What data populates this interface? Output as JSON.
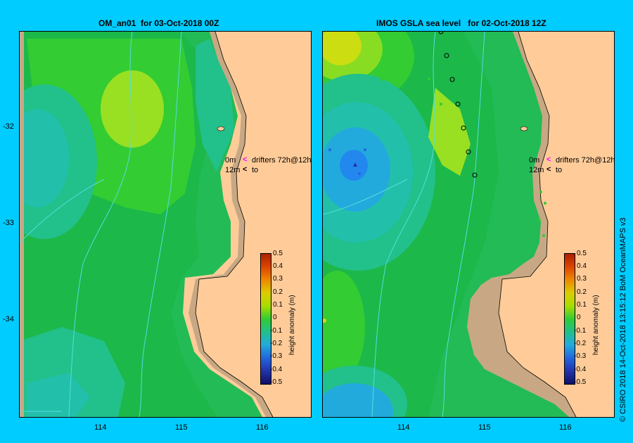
{
  "left_panel": {
    "title": "OM_an01  for 03-Oct-2018 00Z",
    "drifters_line1": "0m",
    "drifters_text": "drifters 72h@12h",
    "drifters_line2": "12m",
    "drifters_to": "to"
  },
  "right_panel": {
    "title": "IMOS GSLA sea level   for 02-Oct-2018 12Z",
    "drifters_line1": "0m",
    "drifters_text": "drifters 72h@12h",
    "drifters_line2": "12m",
    "drifters_to": "to"
  },
  "x_ticks": [
    "114",
    "115",
    "116"
  ],
  "y_ticks": [
    "-32",
    "-33",
    "-34"
  ],
  "colorbar": {
    "title": "height anomaly (m)",
    "labels": [
      "0.5",
      "0.4",
      "0.3",
      "0.2",
      "0.1",
      "0",
      "-0.1",
      "-0.2",
      "-0.3",
      "-0.4",
      "-0.5"
    ]
  },
  "credit": "© CSIRO 2018   14-Oct-2018 13:15:12 BoM OceanMAPS v3",
  "colors": {
    "background": "#00ccff",
    "land": "#ffcc99",
    "coast_shelf": "#c8a884",
    "drifter_0m": "#ff00ff",
    "drifter_12m": "#000000"
  }
}
